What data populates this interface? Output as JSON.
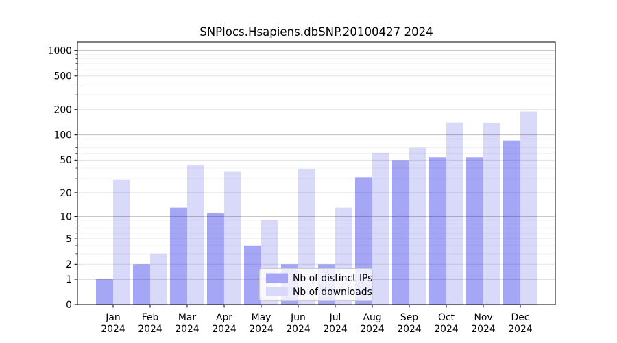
{
  "chart_data": {
    "type": "bar",
    "title": "SNPlocs.Hsapiens.dbSNP.20100427 2024",
    "year": "2024",
    "categories": [
      "Jan",
      "Feb",
      "Mar",
      "Apr",
      "May",
      "Jun",
      "Jul",
      "Aug",
      "Sep",
      "Oct",
      "Nov",
      "Dec"
    ],
    "series": [
      {
        "key": "distinct-ips",
        "name": "Nb of distinct IPs",
        "color": "#a6a6f7",
        "values": [
          1,
          2,
          13,
          11,
          4,
          2,
          2,
          31,
          50,
          54,
          54,
          86
        ]
      },
      {
        "key": "downloads",
        "name": "Nb of downloads",
        "color": "#d9d9f9",
        "values": [
          29,
          3,
          44,
          36,
          9,
          39,
          13,
          61,
          70,
          140,
          137,
          190
        ]
      }
    ],
    "yscale": "log10(value+1)",
    "yticks": [
      0,
      1,
      2,
      5,
      10,
      20,
      50,
      100,
      200,
      500,
      1000
    ],
    "minor_gridlines": [
      3,
      4,
      6,
      7,
      8,
      9,
      30,
      40,
      60,
      70,
      80,
      90,
      300,
      400,
      600,
      700,
      800,
      900
    ],
    "ylim": [
      0,
      1266
    ],
    "grid": true,
    "legend_position": "lower center",
    "colors": {
      "axis": "#000000",
      "background": "#ffffff",
      "grid_major": "rgba(0,0,0,0.25)",
      "grid_mid": "rgba(0,0,0,0.11)",
      "grid_minor": "rgba(0,0,0,0.055)",
      "legend_bg": "rgba(255,255,255,0.8)",
      "legend_border": "#cccccc"
    }
  }
}
